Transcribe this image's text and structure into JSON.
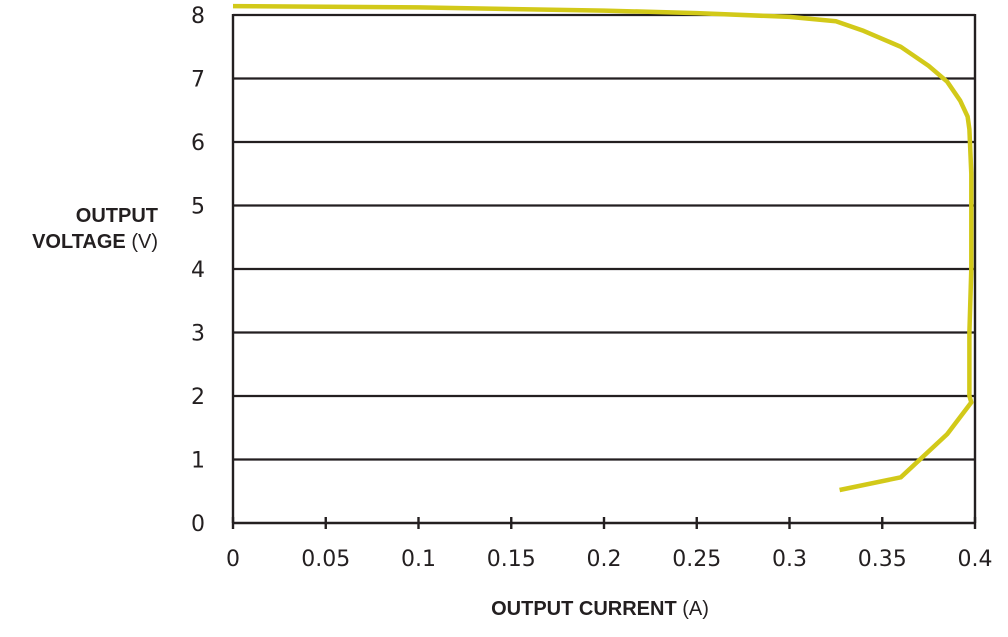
{
  "chart_data": {
    "type": "line",
    "xlabel_bold": "OUTPUT CURRENT",
    "xlabel_unit": "(A)",
    "ylabel_bold_line1": "OUTPUT",
    "ylabel_bold_line2": "VOLTAGE",
    "ylabel_unit": "(V)",
    "xlim": [
      0,
      0.4
    ],
    "ylim": [
      0,
      8
    ],
    "x_ticks": [
      "0",
      "0.05",
      "0.1",
      "0.15",
      "0.2",
      "0.25",
      "0.3",
      "0.35",
      "0.4"
    ],
    "y_ticks": [
      "0",
      "1",
      "2",
      "3",
      "4",
      "5",
      "6",
      "7",
      "8"
    ],
    "grid": "horizontal",
    "series": [
      {
        "color": "#d2c919",
        "x": [
          0.0,
          0.1,
          0.2,
          0.25,
          0.3,
          0.325,
          0.34,
          0.36,
          0.375,
          0.385,
          0.392,
          0.396,
          0.397,
          0.398,
          0.398,
          0.397,
          0.397,
          0.398,
          0.385,
          0.36,
          0.327
        ],
        "y": [
          8.14,
          8.12,
          8.07,
          8.03,
          7.97,
          7.9,
          7.75,
          7.5,
          7.2,
          6.95,
          6.65,
          6.4,
          6.2,
          5.5,
          4.0,
          3.0,
          2.0,
          1.9,
          1.4,
          0.72,
          0.52
        ]
      }
    ]
  }
}
